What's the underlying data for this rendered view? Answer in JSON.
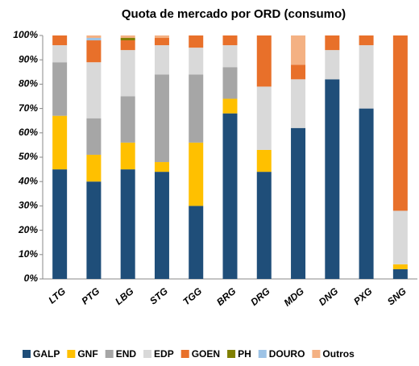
{
  "chart_data": {
    "type": "stacked_bar_100",
    "title": "Quota de mercado por ORD (consumo)",
    "categories": [
      "LTG",
      "PTG",
      "LBG",
      "STG",
      "TGG",
      "BRG",
      "DRG",
      "MDG",
      "DNG",
      "PXG",
      "SNG"
    ],
    "series": [
      {
        "name": "GALP",
        "color": "#1f4e79",
        "values": [
          45,
          40,
          45,
          44,
          30,
          68,
          44,
          62,
          82,
          70,
          4
        ]
      },
      {
        "name": "GNF",
        "color": "#ffc000",
        "values": [
          22,
          11,
          11,
          4,
          26,
          6,
          9,
          0,
          0,
          0,
          2
        ]
      },
      {
        "name": "END",
        "color": "#a6a6a6",
        "values": [
          22,
          15,
          19,
          36,
          28,
          13,
          0,
          0,
          0,
          0,
          0
        ]
      },
      {
        "name": "EDP",
        "color": "#d9d9d9",
        "values": [
          7,
          23,
          19,
          12,
          11,
          9,
          26,
          20,
          12,
          26,
          22
        ]
      },
      {
        "name": "GOEN",
        "color": "#e8702a",
        "values": [
          4,
          9,
          4,
          3,
          5,
          4,
          21,
          6,
          6,
          4,
          72
        ]
      },
      {
        "name": "PH",
        "color": "#7f7f00",
        "values": [
          0,
          0,
          1,
          0,
          0,
          0,
          0,
          0,
          0,
          0,
          0
        ]
      },
      {
        "name": "DOURO",
        "color": "#9dc3e6",
        "values": [
          0,
          1,
          0,
          0,
          0,
          0,
          0,
          0,
          0,
          0,
          0
        ]
      },
      {
        "name": "Outros",
        "color": "#f4b183",
        "values": [
          0,
          1,
          1,
          1,
          0,
          0,
          0,
          12,
          0,
          0,
          0
        ]
      }
    ],
    "ylim": [
      0,
      100
    ],
    "yticks": [
      {
        "value": 0,
        "label": "0%"
      },
      {
        "value": 10,
        "label": "10%"
      },
      {
        "value": 20,
        "label": "20%"
      },
      {
        "value": 30,
        "label": "30%"
      },
      {
        "value": 40,
        "label": "40%"
      },
      {
        "value": 50,
        "label": "50%"
      },
      {
        "value": 60,
        "label": "60%"
      },
      {
        "value": 70,
        "label": "70%"
      },
      {
        "value": 80,
        "label": "80%"
      },
      {
        "value": 90,
        "label": "90%"
      },
      {
        "value": 100,
        "label": "100%"
      }
    ],
    "grid": false
  }
}
